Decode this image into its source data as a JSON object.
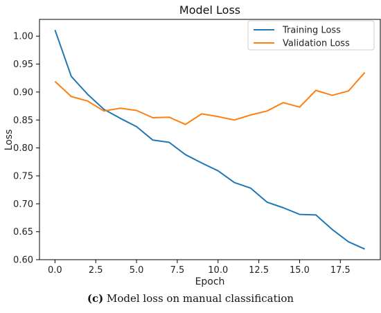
{
  "chart_data": {
    "type": "line",
    "title": "Model Loss",
    "xlabel": "Epoch",
    "ylabel": "Loss",
    "xlim": [
      -0.95,
      19.95
    ],
    "ylim": [
      0.6,
      1.03
    ],
    "xticks": [
      0.0,
      2.5,
      5.0,
      7.5,
      10.0,
      12.5,
      15.0,
      17.5
    ],
    "xtick_labels": [
      "0.0",
      "2.5",
      "5.0",
      "7.5",
      "10.0",
      "12.5",
      "15.0",
      "17.5"
    ],
    "yticks": [
      0.6,
      0.65,
      0.7,
      0.75,
      0.8,
      0.85,
      0.9,
      0.95,
      1.0
    ],
    "ytick_labels": [
      "0.60",
      "0.65",
      "0.70",
      "0.75",
      "0.80",
      "0.85",
      "0.90",
      "0.95",
      "1.00"
    ],
    "x": [
      0,
      1,
      2,
      3,
      4,
      5,
      6,
      7,
      8,
      9,
      10,
      11,
      12,
      13,
      14,
      15,
      16,
      17,
      18,
      19
    ],
    "series": [
      {
        "name": "Training Loss",
        "color": "#1f77b4",
        "values": [
          1.011,
          0.928,
          0.896,
          0.869,
          0.853,
          0.838,
          0.814,
          0.81,
          0.788,
          0.773,
          0.759,
          0.738,
          0.728,
          0.703,
          0.693,
          0.681,
          0.68,
          0.654,
          0.632,
          0.619
        ]
      },
      {
        "name": "Validation Loss",
        "color": "#ff7f0e",
        "values": [
          0.919,
          0.892,
          0.884,
          0.866,
          0.871,
          0.867,
          0.854,
          0.855,
          0.842,
          0.861,
          0.856,
          0.85,
          0.859,
          0.866,
          0.881,
          0.873,
          0.903,
          0.894,
          0.902,
          0.935
        ]
      }
    ],
    "legend_position": "top-right",
    "grid": false
  },
  "caption": {
    "tag": "(c)",
    "text": " Model loss on manual classification"
  }
}
